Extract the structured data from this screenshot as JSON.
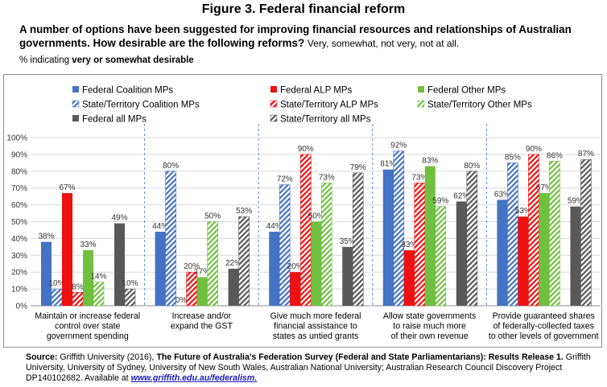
{
  "figure_title": "Figure 3. Federal financial reform",
  "question": {
    "text": "A number of options have been suggested for improving financial resources and relationships of Australian governments.  How desirable are the following reforms?",
    "scale": "Very, somewhat, not very, not at all."
  },
  "note": {
    "prefix": "% indicating",
    "bold": "very or somewhat desirable"
  },
  "source": {
    "label": "Source:",
    "text1": " Griffith University (2016), ",
    "title": "The Future of Australia's Federation Survey (Federal and State Parliamentarians): Results Release 1.",
    "text2": " Griffith University, University of Sydney, University of New South Wales, Australian National University; Australian Research Council Discovery Project DP140102682.  Available at ",
    "link": "www.griffith.edu.au/federalism."
  },
  "chart_data": {
    "type": "bar",
    "ylim": [
      0,
      100
    ],
    "yticks": [
      "0%",
      "10%",
      "20%",
      "30%",
      "40%",
      "50%",
      "60%",
      "70%",
      "80%",
      "90%",
      "100%"
    ],
    "grid": true,
    "legend_position": "top",
    "categories": [
      [
        "Maintain or increase federal",
        "control over state",
        "government spending"
      ],
      [
        "Increase and/or",
        "expand the GST"
      ],
      [
        "Give much more federal",
        "financial assistance to",
        "states as untied grants"
      ],
      [
        "Allow state governments",
        "to raise much more",
        "of their own revenue"
      ],
      [
        "Provide guaranteed shares",
        "of federally-collected taxes",
        "to other levels of government"
      ]
    ],
    "series": [
      {
        "name": "Federal Coalition MPs",
        "color": "#4472c4",
        "pattern": "solid",
        "values": [
          38,
          44,
          44,
          81,
          63
        ]
      },
      {
        "name": "State/Territory Coalition MPs",
        "color": "#4472c4",
        "pattern": "hatch",
        "values": [
          10,
          80,
          72,
          92,
          85
        ]
      },
      {
        "name": "Federal ALP MPs",
        "color": "#ee1111",
        "pattern": "solid",
        "values": [
          67,
          0,
          20,
          33,
          53
        ]
      },
      {
        "name": "State/Territory ALP MPs",
        "color": "#ee1111",
        "pattern": "hatch",
        "values": [
          8,
          20,
          90,
          73,
          90
        ]
      },
      {
        "name": "Federal Other MPs",
        "color": "#70c040",
        "pattern": "solid",
        "values": [
          33,
          17,
          50,
          83,
          67
        ]
      },
      {
        "name": "State/Territory Other MPs",
        "color": "#70c040",
        "pattern": "hatch",
        "values": [
          14,
          50,
          73,
          59,
          86
        ]
      },
      {
        "name": "Federal all MPs",
        "color": "#595959",
        "pattern": "solid",
        "values": [
          49,
          22,
          35,
          62,
          59
        ]
      },
      {
        "name": "State/Territory all MPs",
        "color": "#595959",
        "pattern": "hatch",
        "values": [
          10,
          53,
          79,
          80,
          87
        ]
      }
    ],
    "legend_order": [
      0,
      2,
      4,
      1,
      3,
      5,
      6,
      7
    ]
  }
}
